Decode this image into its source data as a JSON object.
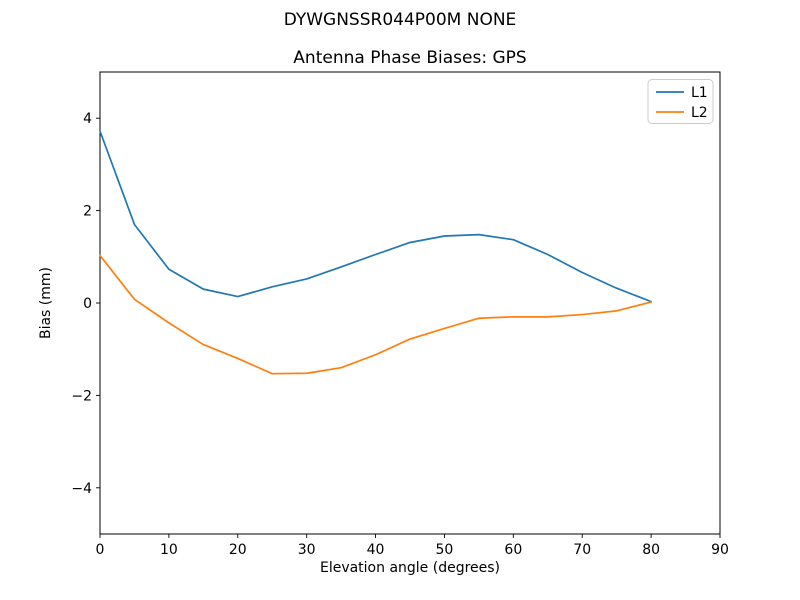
{
  "figure": {
    "suptitle": "DYWGNSSR044P00M NONE",
    "background_color": "#ffffff",
    "spine_color": "#000000"
  },
  "chart_data": {
    "type": "line",
    "title": "Antenna Phase Biases: GPS",
    "suptitle": "DYWGNSSR044P00M NONE",
    "xlabel": "Elevation angle (degrees)",
    "ylabel": "Bias (mm)",
    "xlim": [
      0,
      90
    ],
    "ylim": [
      -5,
      5
    ],
    "xticks": [
      0,
      10,
      20,
      30,
      40,
      50,
      60,
      70,
      80,
      90
    ],
    "yticks": [
      -4,
      -2,
      0,
      2,
      4
    ],
    "grid": false,
    "legend_position": "upper right",
    "legend_entries": [
      "L1",
      "L2"
    ],
    "x": [
      0,
      5,
      10,
      15,
      20,
      25,
      30,
      35,
      40,
      45,
      50,
      55,
      60,
      65,
      70,
      75,
      80
    ],
    "series": [
      {
        "name": "L1",
        "color": "#1f77b4",
        "values": [
          3.72,
          1.7,
          0.73,
          0.3,
          0.14,
          0.35,
          0.52,
          0.78,
          1.05,
          1.31,
          1.45,
          1.48,
          1.37,
          1.05,
          0.66,
          0.32,
          0.03
        ]
      },
      {
        "name": "L2",
        "color": "#ff7f0e",
        "values": [
          1.03,
          0.08,
          -0.43,
          -0.9,
          -1.2,
          -1.53,
          -1.52,
          -1.4,
          -1.12,
          -0.78,
          -0.55,
          -0.33,
          -0.3,
          -0.3,
          -0.25,
          -0.17,
          0.02
        ]
      }
    ]
  }
}
